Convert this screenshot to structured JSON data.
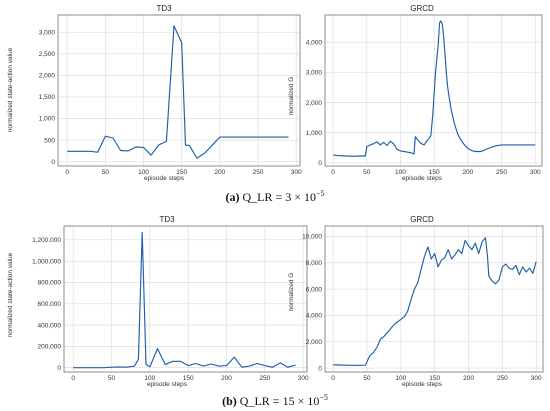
{
  "figure": {
    "captions": [
      {
        "label": "(a)",
        "text": " Q_LR = 3 × 10",
        "exp": "−5"
      },
      {
        "label": "(b)",
        "text": " Q_LR = 15 × 10",
        "exp": "−5"
      }
    ]
  },
  "chart_data": [
    {
      "type": "line",
      "title": "TD3",
      "xlabel": "episode steps",
      "ylabel": "normalized  state-action  value",
      "xlim": [
        -12,
        305
      ],
      "ylim": [
        -100,
        3400
      ],
      "xticks": [
        0,
        50,
        100,
        150,
        200,
        250,
        300
      ],
      "yticks": [
        0,
        500,
        1000,
        1500,
        2000,
        2500,
        3000
      ],
      "ytick_labels": [
        "0",
        "500",
        "1,000",
        "1,500",
        "2,000",
        "2,500",
        "3,000"
      ],
      "grid": true,
      "series": [
        {
          "x": [
            0,
            10,
            20,
            30,
            40,
            50,
            60,
            70,
            80,
            90,
            100,
            110,
            120,
            130,
            140,
            150,
            155,
            160,
            170,
            180,
            190,
            200,
            210,
            220,
            230,
            240,
            250,
            260,
            270,
            280,
            290
          ],
          "y": [
            240,
            240,
            240,
            240,
            220,
            590,
            550,
            260,
            250,
            340,
            330,
            150,
            390,
            470,
            3150,
            2750,
            380,
            380,
            80,
            200,
            380,
            570,
            570,
            570,
            570,
            570,
            570,
            570,
            570,
            570,
            570
          ]
        }
      ]
    },
    {
      "type": "line",
      "title": "GRCD",
      "xlabel": "episode steps",
      "ylabel": "normalized  G",
      "xlim": [
        -12,
        310
      ],
      "ylim": [
        -100,
        4900
      ],
      "xticks": [
        0,
        50,
        100,
        150,
        200,
        250,
        300
      ],
      "yticks": [
        0,
        1000,
        2000,
        3000,
        4000
      ],
      "ytick_labels": [
        "0",
        "1,000",
        "2,000",
        "3,000",
        "4,000"
      ],
      "grid": true,
      "series": [
        {
          "x": [
            0,
            10,
            20,
            30,
            40,
            48,
            50,
            55,
            60,
            65,
            70,
            75,
            80,
            85,
            90,
            95,
            100,
            105,
            110,
            115,
            120,
            122,
            125,
            130,
            135,
            140,
            145,
            148,
            152,
            156,
            158,
            160,
            162,
            164,
            166,
            168,
            170,
            175,
            180,
            185,
            190,
            195,
            200,
            205,
            210,
            215,
            220,
            230,
            240,
            250,
            260,
            270,
            280,
            290,
            300
          ],
          "y": [
            260,
            240,
            230,
            220,
            230,
            230,
            540,
            600,
            640,
            700,
            600,
            680,
            580,
            720,
            630,
            450,
            400,
            380,
            360,
            340,
            300,
            870,
            780,
            650,
            600,
            750,
            900,
            1600,
            3000,
            3900,
            4650,
            4700,
            4600,
            4200,
            3600,
            3000,
            2500,
            1800,
            1300,
            950,
            750,
            600,
            480,
            420,
            380,
            380,
            380,
            480,
            560,
            600,
            600,
            600,
            600,
            600,
            600
          ]
        }
      ]
    },
    {
      "type": "line",
      "title": "TD3",
      "xlabel": "episode steps",
      "ylabel": "normalized  state-action  value",
      "xlim": [
        -12,
        305
      ],
      "ylim": [
        -40000,
        1330000
      ],
      "xticks": [
        0,
        50,
        100,
        150,
        200,
        250,
        300
      ],
      "yticks": [
        0,
        200000,
        400000,
        600000,
        800000,
        1000000,
        1200000
      ],
      "ytick_labels": [
        "0",
        "200,000",
        "400,000",
        "600,000",
        "800,000",
        "1,000,000",
        "1,200,000"
      ],
      "grid": true,
      "series": [
        {
          "x": [
            0,
            10,
            20,
            30,
            40,
            50,
            60,
            70,
            80,
            85,
            90,
            95,
            100,
            110,
            120,
            130,
            140,
            150,
            160,
            170,
            180,
            190,
            200,
            210,
            220,
            230,
            240,
            250,
            260,
            270,
            280,
            290
          ],
          "y": [
            0,
            0,
            0,
            0,
            0,
            5000,
            8000,
            5000,
            15000,
            80000,
            1270000,
            30000,
            10000,
            180000,
            30000,
            60000,
            60000,
            20000,
            40000,
            15000,
            35000,
            15000,
            20000,
            100000,
            5000,
            15000,
            40000,
            20000,
            5000,
            45000,
            5000,
            25000
          ]
        }
      ]
    },
    {
      "type": "line",
      "title": "GRCD",
      "xlabel": "episode steps",
      "ylabel": "normalized  G",
      "xlim": [
        -12,
        310
      ],
      "ylim": [
        -300,
        10800
      ],
      "xticks": [
        0,
        50,
        100,
        150,
        200,
        250,
        300
      ],
      "yticks": [
        0,
        2000,
        4000,
        6000,
        8000,
        10000
      ],
      "ytick_labels": [
        "0",
        "2,000",
        "4,000",
        "6,000",
        "8,000",
        "10,000"
      ],
      "grid": true,
      "series": [
        {
          "x": [
            0,
            10,
            20,
            30,
            40,
            48,
            52,
            55,
            60,
            65,
            70,
            75,
            80,
            85,
            90,
            95,
            100,
            105,
            110,
            115,
            120,
            125,
            130,
            135,
            140,
            145,
            150,
            155,
            160,
            165,
            170,
            175,
            180,
            185,
            190,
            195,
            200,
            205,
            210,
            215,
            220,
            225,
            228,
            230,
            235,
            240,
            245,
            250,
            255,
            260,
            265,
            270,
            275,
            280,
            285,
            290,
            295,
            300
          ],
          "y": [
            250,
            230,
            220,
            210,
            210,
            220,
            700,
            1000,
            1200,
            1600,
            2200,
            2400,
            2700,
            3000,
            3300,
            3500,
            3700,
            3900,
            4300,
            5200,
            6000,
            6500,
            7500,
            8500,
            9200,
            8300,
            8700,
            7700,
            8200,
            8400,
            9000,
            8300,
            8600,
            9000,
            8700,
            9700,
            9300,
            9000,
            9500,
            8700,
            9600,
            9900,
            8500,
            7000,
            6600,
            6400,
            6700,
            7700,
            7900,
            7600,
            7500,
            7800,
            7100,
            7700,
            7300,
            7600,
            7200,
            8100
          ]
        }
      ]
    }
  ]
}
